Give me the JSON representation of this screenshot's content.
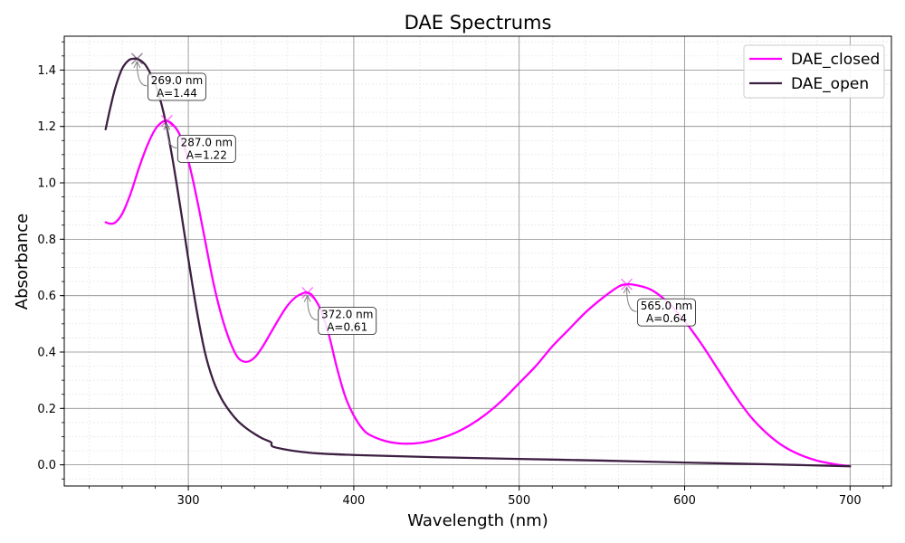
{
  "chart_data": {
    "type": "line",
    "title": "DAE Spectrums",
    "xlabel": "Wavelength (nm)",
    "ylabel": "Absorbance",
    "xlim": [
      225,
      725
    ],
    "ylim": [
      -0.075,
      1.52
    ],
    "x_ticks": [
      300,
      400,
      500,
      600,
      700
    ],
    "y_ticks": [
      0.0,
      0.2,
      0.4,
      0.6,
      0.8,
      1.0,
      1.2,
      1.4
    ],
    "x_tick_labels": [
      "300",
      "400",
      "500",
      "600",
      "700"
    ],
    "y_tick_labels": [
      "0.0",
      "0.2",
      "0.4",
      "0.6",
      "0.8",
      "1.0",
      "1.2",
      "1.4"
    ],
    "grid": true,
    "legend_position": "top-right",
    "series": [
      {
        "name": "DAE_closed",
        "color": "#ff00ff",
        "points": [
          [
            250,
            0.86
          ],
          [
            253,
            0.855
          ],
          [
            256,
            0.86
          ],
          [
            260,
            0.89
          ],
          [
            265,
            0.96
          ],
          [
            270,
            1.05
          ],
          [
            275,
            1.13
          ],
          [
            280,
            1.19
          ],
          [
            284,
            1.215
          ],
          [
            287,
            1.22
          ],
          [
            290,
            1.21
          ],
          [
            294,
            1.18
          ],
          [
            298,
            1.12
          ],
          [
            302,
            1.03
          ],
          [
            306,
            0.92
          ],
          [
            310,
            0.8
          ],
          [
            315,
            0.65
          ],
          [
            320,
            0.53
          ],
          [
            325,
            0.44
          ],
          [
            330,
            0.38
          ],
          [
            335,
            0.365
          ],
          [
            340,
            0.38
          ],
          [
            345,
            0.42
          ],
          [
            350,
            0.47
          ],
          [
            355,
            0.52
          ],
          [
            360,
            0.565
          ],
          [
            365,
            0.595
          ],
          [
            370,
            0.61
          ],
          [
            372,
            0.61
          ],
          [
            375,
            0.6
          ],
          [
            380,
            0.55
          ],
          [
            385,
            0.46
          ],
          [
            390,
            0.34
          ],
          [
            395,
            0.24
          ],
          [
            400,
            0.175
          ],
          [
            405,
            0.13
          ],
          [
            410,
            0.105
          ],
          [
            420,
            0.083
          ],
          [
            430,
            0.075
          ],
          [
            440,
            0.078
          ],
          [
            450,
            0.09
          ],
          [
            460,
            0.11
          ],
          [
            470,
            0.14
          ],
          [
            480,
            0.18
          ],
          [
            490,
            0.23
          ],
          [
            500,
            0.29
          ],
          [
            510,
            0.35
          ],
          [
            520,
            0.42
          ],
          [
            530,
            0.48
          ],
          [
            540,
            0.54
          ],
          [
            550,
            0.59
          ],
          [
            560,
            0.632
          ],
          [
            565,
            0.64
          ],
          [
            570,
            0.638
          ],
          [
            580,
            0.62
          ],
          [
            590,
            0.575
          ],
          [
            600,
            0.51
          ],
          [
            610,
            0.43
          ],
          [
            620,
            0.34
          ],
          [
            630,
            0.25
          ],
          [
            640,
            0.17
          ],
          [
            650,
            0.11
          ],
          [
            660,
            0.065
          ],
          [
            670,
            0.035
          ],
          [
            680,
            0.015
          ],
          [
            690,
            0.003
          ],
          [
            700,
            -0.005
          ]
        ]
      },
      {
        "name": "DAE_open",
        "color": "#3d1f42",
        "points": [
          [
            250,
            1.19
          ],
          [
            253,
            1.27
          ],
          [
            256,
            1.34
          ],
          [
            260,
            1.405
          ],
          [
            264,
            1.435
          ],
          [
            267,
            1.44
          ],
          [
            269,
            1.44
          ],
          [
            272,
            1.43
          ],
          [
            275,
            1.41
          ],
          [
            280,
            1.35
          ],
          [
            285,
            1.25
          ],
          [
            290,
            1.1
          ],
          [
            295,
            0.92
          ],
          [
            300,
            0.73
          ],
          [
            305,
            0.55
          ],
          [
            310,
            0.4
          ],
          [
            315,
            0.3
          ],
          [
            320,
            0.235
          ],
          [
            325,
            0.19
          ],
          [
            330,
            0.155
          ],
          [
            335,
            0.13
          ],
          [
            340,
            0.11
          ],
          [
            345,
            0.093
          ],
          [
            350,
            0.08
          ],
          [
            351,
            0.065
          ],
          [
            360,
            0.053
          ],
          [
            370,
            0.045
          ],
          [
            380,
            0.04
          ],
          [
            400,
            0.035
          ],
          [
            450,
            0.027
          ],
          [
            500,
            0.021
          ],
          [
            550,
            0.015
          ],
          [
            600,
            0.008
          ],
          [
            650,
            0.002
          ],
          [
            700,
            -0.005
          ]
        ]
      }
    ],
    "annotations": [
      {
        "series": "DAE_open",
        "x": 269.0,
        "y": 1.44,
        "line1": "269.0 nm",
        "line2": "A=1.44"
      },
      {
        "series": "DAE_closed",
        "x": 287.0,
        "y": 1.22,
        "line1": "287.0 nm",
        "line2": "A=1.22"
      },
      {
        "series": "DAE_closed",
        "x": 372.0,
        "y": 0.61,
        "line1": "372.0 nm",
        "line2": "A=0.61"
      },
      {
        "series": "DAE_closed",
        "x": 565.0,
        "y": 0.64,
        "line1": "565.0 nm",
        "line2": "A=0.64"
      }
    ]
  }
}
